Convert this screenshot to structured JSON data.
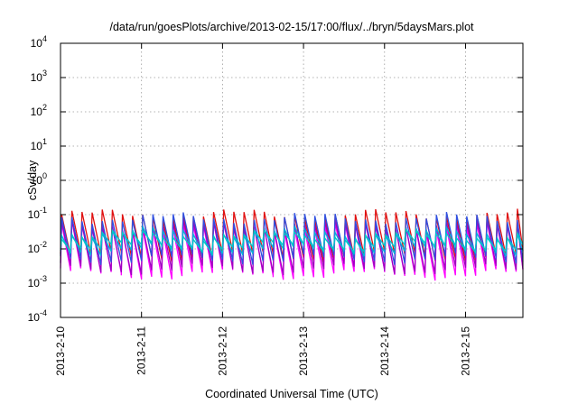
{
  "chart_data": {
    "type": "line",
    "title": "/data/run/goesPlots/archive/2013-02-15/17:00/flux/../bryn/5daysMars.plot",
    "xlabel": "Coordinated Universal Time (UTC)",
    "ylabel": "cSv/day",
    "yscale": "log",
    "ylim": [
      0.0001,
      10000
    ],
    "xlim": [
      "2013-02-10T00:00",
      "2013-02-15T17:00"
    ],
    "x_tick_labels": [
      "2013-2-10",
      "2013-2-11",
      "2013-2-12",
      "2013-2-13",
      "2013-2-14",
      "2013-2-15"
    ],
    "y_ticks": [
      {
        "base": "10",
        "exp": "-4"
      },
      {
        "base": "10",
        "exp": "-3"
      },
      {
        "base": "10",
        "exp": "-2"
      },
      {
        "base": "10",
        "exp": "-1"
      },
      {
        "base": "10",
        "exp": "0"
      },
      {
        "base": "10",
        "exp": "1"
      },
      {
        "base": "10",
        "exp": "2"
      },
      {
        "base": "10",
        "exp": "3"
      },
      {
        "base": "10",
        "exp": "4"
      }
    ],
    "grid": true,
    "sawtooth": {
      "period_hours": 3,
      "peak_value": 0.08,
      "trough_value": 0.003
    },
    "series": [
      {
        "color": "#e01010",
        "peak": 0.1,
        "trough": 0.006
      },
      {
        "color": "#ff00ff",
        "peak": 0.045,
        "trough": 0.0018
      },
      {
        "color": "#a000c0",
        "peak": 0.05,
        "trough": 0.0025
      },
      {
        "color": "#3050e0",
        "peak": 0.08,
        "trough": 0.005
      },
      {
        "color": "#00b4d8",
        "peak": 0.03,
        "trough": 0.009
      },
      {
        "color": "#00c8c8",
        "peak": 0.025,
        "trough": 0.011
      }
    ]
  }
}
